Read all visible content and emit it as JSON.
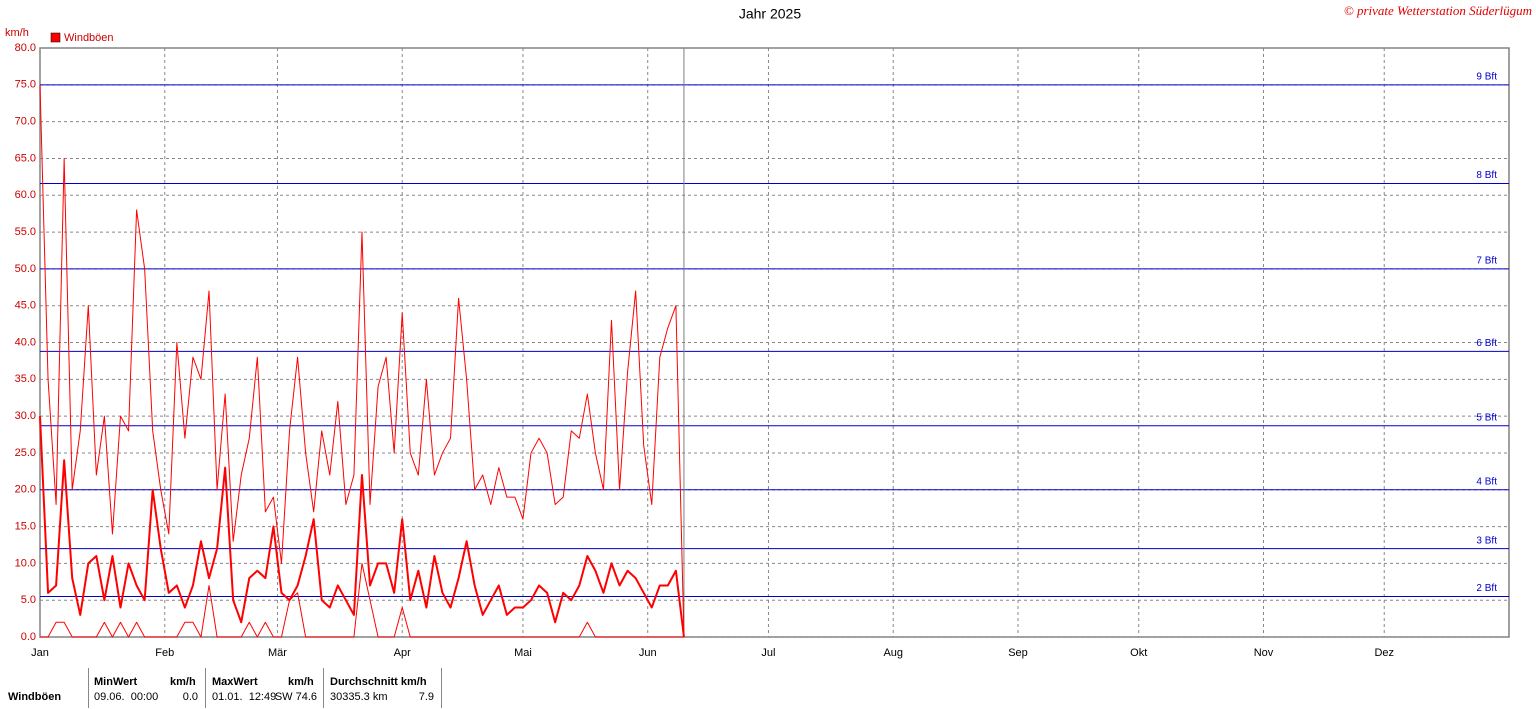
{
  "chart_data": {
    "type": "line",
    "title": "Jahr 2025",
    "copyright": "© private Wetterstation Süderlügum",
    "y_unit": "km/h",
    "grid": true,
    "xlim": [
      0,
      365
    ],
    "xticks": [
      {
        "value": 0,
        "label": "Jan"
      },
      {
        "value": 31,
        "label": "Feb"
      },
      {
        "value": 59,
        "label": "Mär"
      },
      {
        "value": 90,
        "label": "Apr"
      },
      {
        "value": 120,
        "label": "Mai"
      },
      {
        "value": 151,
        "label": "Jun"
      },
      {
        "value": 181,
        "label": "Jul"
      },
      {
        "value": 212,
        "label": "Aug"
      },
      {
        "value": 243,
        "label": "Sep"
      },
      {
        "value": 273,
        "label": "Okt"
      },
      {
        "value": 304,
        "label": "Nov"
      },
      {
        "value": 334,
        "label": "Dez"
      }
    ],
    "ylim": [
      0,
      80
    ],
    "yticks": [
      {
        "value": 0,
        "label": "0.0"
      },
      {
        "value": 5,
        "label": "5.0"
      },
      {
        "value": 10,
        "label": "10.0"
      },
      {
        "value": 15,
        "label": "15.0"
      },
      {
        "value": 20,
        "label": "20.0"
      },
      {
        "value": 25,
        "label": "25.0"
      },
      {
        "value": 30,
        "label": "30.0"
      },
      {
        "value": 35,
        "label": "35.0"
      },
      {
        "value": 40,
        "label": "40.0"
      },
      {
        "value": 45,
        "label": "45.0"
      },
      {
        "value": 50,
        "label": "50.0"
      },
      {
        "value": 55,
        "label": "55.0"
      },
      {
        "value": 60,
        "label": "60.0"
      },
      {
        "value": 65,
        "label": "65.0"
      },
      {
        "value": 70,
        "label": "70.0"
      },
      {
        "value": 75,
        "label": "75.0"
      },
      {
        "value": 80,
        "label": "80.0"
      }
    ],
    "reference_lines": [
      {
        "value": 5.5,
        "label": "2 Bft"
      },
      {
        "value": 12,
        "label": "3 Bft"
      },
      {
        "value": 20,
        "label": "4 Bft"
      },
      {
        "value": 28.7,
        "label": "5 Bft"
      },
      {
        "value": 38.8,
        "label": "6 Bft"
      },
      {
        "value": 50,
        "label": "7 Bft"
      },
      {
        "value": 61.6,
        "label": "8 Bft"
      },
      {
        "value": 75,
        "label": "9 Bft"
      }
    ],
    "reference_color": "#0000cc",
    "x": [
      0,
      2,
      4,
      6,
      8,
      10,
      12,
      14,
      16,
      18,
      20,
      22,
      24,
      26,
      28,
      30,
      32,
      34,
      36,
      38,
      40,
      42,
      44,
      46,
      48,
      50,
      52,
      54,
      56,
      58,
      60,
      62,
      64,
      66,
      68,
      70,
      72,
      74,
      76,
      78,
      80,
      82,
      84,
      86,
      88,
      90,
      92,
      94,
      96,
      98,
      100,
      102,
      104,
      106,
      108,
      110,
      112,
      114,
      116,
      118,
      120,
      122,
      124,
      126,
      128,
      130,
      132,
      134,
      136,
      138,
      140,
      142,
      144,
      146,
      148,
      150,
      152,
      154,
      156,
      158,
      160
    ],
    "series": [
      {
        "name": "Windböen",
        "color": "#ff0000",
        "width": 2,
        "values": [
          30,
          6,
          7,
          24,
          8,
          3,
          10,
          11,
          5,
          11,
          4,
          10,
          7,
          5,
          20,
          12,
          6,
          7,
          4,
          7,
          13,
          8,
          12,
          23,
          5,
          2,
          8,
          9,
          8,
          15,
          6,
          5,
          7,
          11,
          16,
          5,
          4,
          7,
          5,
          3,
          22,
          7,
          10,
          10,
          6,
          16,
          5,
          9,
          4,
          11,
          6,
          4,
          8,
          13,
          7,
          3,
          5,
          7,
          3,
          4,
          4,
          5,
          7,
          6,
          2,
          6,
          5,
          7,
          11,
          9,
          6,
          10,
          7,
          9,
          8,
          6,
          4,
          7,
          7,
          9,
          0
        ]
      },
      {
        "color": "#ff0000",
        "width": 1,
        "values": [
          75,
          35,
          18,
          65,
          20,
          28,
          45,
          22,
          30,
          14,
          30,
          28,
          58,
          50,
          28,
          20,
          14,
          40,
          27,
          38,
          35,
          47,
          20,
          33,
          13,
          22,
          27,
          38,
          17,
          19,
          10,
          28,
          38,
          25,
          17,
          28,
          22,
          32,
          18,
          22,
          55,
          18,
          34,
          38,
          25,
          44,
          25,
          22,
          35,
          22,
          25,
          27,
          46,
          35,
          20,
          22,
          18,
          23,
          19,
          19,
          16,
          25,
          27,
          25,
          18,
          19,
          28,
          27,
          33,
          25,
          20,
          43,
          20,
          36,
          47,
          26,
          18,
          38,
          42,
          45,
          0
        ]
      },
      {
        "color": "#ff0000",
        "width": 1,
        "values": [
          0,
          0,
          2,
          2,
          0,
          0,
          0,
          0,
          2,
          0,
          2,
          0,
          2,
          0,
          0,
          0,
          0,
          0,
          2,
          2,
          0,
          7,
          0,
          0,
          0,
          0,
          2,
          0,
          2,
          0,
          0,
          5,
          6,
          0,
          0,
          0,
          0,
          0,
          0,
          0,
          10,
          5,
          0,
          0,
          0,
          4,
          0,
          0,
          0,
          0,
          0,
          0,
          0,
          0,
          0,
          0,
          0,
          0,
          0,
          0,
          0,
          0,
          0,
          0,
          0,
          0,
          0,
          0,
          2,
          0,
          0,
          0,
          0,
          0,
          0,
          0,
          0,
          0,
          0,
          0,
          0
        ]
      }
    ]
  },
  "stats": {
    "label": "Windböen",
    "min": {
      "header": "MinWert",
      "unit": "km/h",
      "date": "09.06.  00:00",
      "value": "0.0"
    },
    "max": {
      "header": "MaxWert",
      "unit": "km/h",
      "date": "01.01.  12:49",
      "value": "SW 74.6"
    },
    "avg": {
      "header": "Durchschnitt km/h",
      "distance": "30335.3 km",
      "value": "7.9"
    }
  }
}
